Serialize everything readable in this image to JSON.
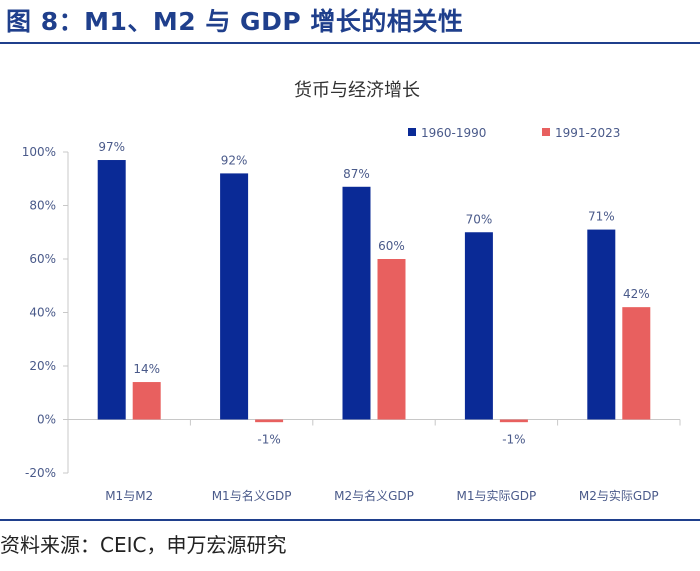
{
  "figure": {
    "title": "图 8：M1、M2 与 GDP 增长的相关性",
    "source": "资料来源：CEIC，申万宏源研究"
  },
  "colors": {
    "accent": "#1f3f8c",
    "series_1960": "#0a2a96",
    "series_1991": "#e8605f",
    "axis_text": "#4a5a8a"
  },
  "chart_data": {
    "type": "bar",
    "title": "货币与经济增长",
    "xlabel": "",
    "ylabel": "",
    "categories": [
      "M1与M2",
      "M1与名义GDP",
      "M2与名义GDP",
      "M1与实际GDP",
      "M2与实际GDP"
    ],
    "series": [
      {
        "name": "1960-1990",
        "values": [
          97,
          92,
          87,
          70,
          71
        ],
        "labels": [
          "97%",
          "92%",
          "87%",
          "70%",
          "71%"
        ]
      },
      {
        "name": "1991-2023",
        "values": [
          14,
          -1,
          60,
          -1,
          42
        ],
        "labels": [
          "14%",
          "-1%",
          "60%",
          "-1%",
          "42%"
        ]
      }
    ],
    "ylim": [
      -20,
      100
    ],
    "yticks": [
      -20,
      0,
      20,
      40,
      60,
      80,
      100
    ],
    "ytick_labels": [
      "-20%",
      "0%",
      "20%",
      "40%",
      "60%",
      "80%",
      "100%"
    ],
    "legend_position": "top-right",
    "grid": false
  }
}
